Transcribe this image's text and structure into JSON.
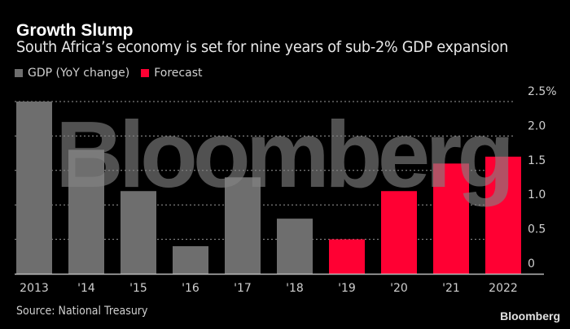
{
  "header": {
    "title": "Growth Slump",
    "subtitle": "South Africa’s economy is set for nine years of sub-2% GDP expansion"
  },
  "legend": [
    {
      "label": "GDP (YoY change)",
      "color": "#6e6e6e"
    },
    {
      "label": "Forecast",
      "color": "#ff0033"
    }
  ],
  "footer": {
    "source": "Source: National Treasury",
    "brand": "Bloomberg"
  },
  "watermark": "Bloomberg",
  "chart_data": {
    "type": "bar",
    "title": "Growth Slump",
    "subtitle": "South Africa’s economy is set for nine years of sub-2% GDP expansion",
    "xlabel": "",
    "ylabel": "",
    "categories": [
      "2013",
      "'14",
      "'15",
      "'16",
      "'17",
      "'18",
      "'19",
      "'20",
      "'21",
      "2022"
    ],
    "series": [
      {
        "name": "GDP (YoY change)",
        "color": "#6e6e6e",
        "values": [
          2.5,
          1.8,
          1.2,
          0.4,
          1.4,
          0.8,
          null,
          null,
          null,
          null
        ]
      },
      {
        "name": "Forecast",
        "color": "#ff0033",
        "values": [
          null,
          null,
          null,
          null,
          null,
          null,
          0.5,
          1.2,
          1.6,
          1.7
        ]
      }
    ],
    "ylim": [
      0,
      2.5
    ],
    "yticks": [
      0,
      0.5,
      1.0,
      1.5,
      2.0,
      2.5
    ],
    "ytick_labels": [
      "0",
      "0.5",
      "1.0",
      "1.5",
      "2.0",
      "2.5%"
    ],
    "y_axis_side": "right",
    "grid": true,
    "legend_position": "top-left"
  }
}
